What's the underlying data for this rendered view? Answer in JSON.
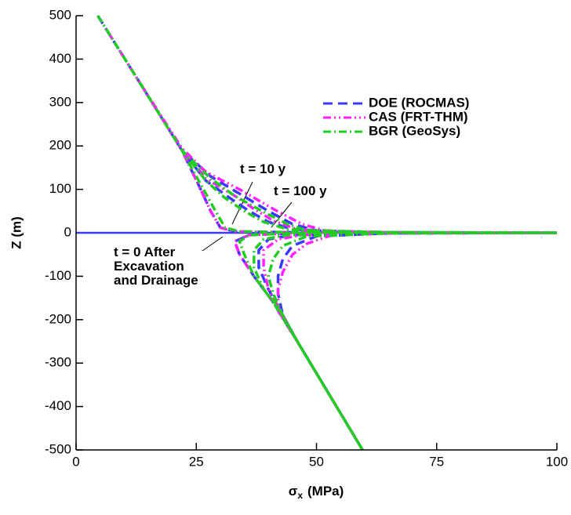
{
  "chart_data": {
    "type": "line",
    "xlabel": {
      "symbol": "σ",
      "subscript": "x",
      "unit": "(MPa)"
    },
    "ylabel": "Z (m)",
    "xlim": [
      0,
      100
    ],
    "xticks": [
      0,
      25,
      50,
      75,
      100
    ],
    "ylim": [
      -500,
      500
    ],
    "yticks": [
      -500,
      -400,
      -300,
      -200,
      -100,
      0,
      100,
      200,
      300,
      400,
      500
    ],
    "hline": {
      "value": 0,
      "color": "#3a3aff"
    },
    "series": [
      {
        "name": "DOE (ROCMAS)",
        "color": "#3a3aff",
        "dash": "12,7",
        "x": [
          4.5,
          13,
          22,
          25.5,
          28,
          30,
          33,
          45,
          70,
          100,
          null,
          100,
          70,
          45,
          36,
          33,
          34,
          37,
          41,
          46,
          59.6,
          null,
          4.5,
          13,
          22,
          27,
          32,
          36,
          40,
          45,
          60,
          100,
          null,
          100,
          60,
          45,
          40,
          38,
          38,
          40,
          42,
          46,
          59.6,
          null,
          4.5,
          13,
          22,
          28,
          34,
          40,
          45,
          50,
          65,
          100,
          null,
          100,
          65,
          50,
          45,
          43,
          42,
          42,
          43,
          46,
          59.6
        ],
        "values": [
          500,
          350,
          190,
          110,
          50,
          12,
          3,
          1,
          0.5,
          0,
          null,
          0,
          -0.5,
          -1,
          -5,
          -20,
          -50,
          -100,
          -160,
          -250,
          -500,
          null,
          500,
          350,
          190,
          120,
          80,
          50,
          25,
          8,
          1,
          0,
          null,
          0,
          -1,
          -5,
          -15,
          -40,
          -80,
          -130,
          -170,
          -250,
          -500,
          null,
          500,
          350,
          190,
          130,
          90,
          50,
          20,
          5,
          1,
          0,
          null,
          0,
          -1,
          -8,
          -30,
          -60,
          -100,
          -140,
          -190,
          -250,
          -500
        ]
      },
      {
        "name": "CAS (FRT-THM)",
        "color": "#ff22ff",
        "dash": "10,4,2,4,2,4",
        "x": [
          4.5,
          13,
          22,
          25.5,
          28,
          30,
          33,
          45,
          70,
          100,
          null,
          100,
          70,
          45,
          36,
          33,
          34,
          37,
          41,
          46,
          59.6,
          null,
          4.5,
          13,
          22,
          27,
          33,
          37,
          41,
          46,
          60,
          100,
          null,
          100,
          60,
          47,
          42,
          39,
          39,
          40,
          42,
          46,
          59.6,
          null,
          4.5,
          13,
          22,
          27,
          34,
          41,
          47,
          52,
          65,
          100,
          null,
          100,
          65,
          53,
          48,
          45,
          43,
          42,
          42,
          46,
          59.6
        ],
        "values": [
          500,
          350,
          190,
          110,
          50,
          12,
          3,
          1,
          0.5,
          0,
          null,
          0,
          -0.5,
          -1,
          -5,
          -20,
          -50,
          -100,
          -160,
          -250,
          -500,
          null,
          500,
          350,
          195,
          125,
          85,
          55,
          28,
          8,
          1,
          0,
          null,
          0,
          -1,
          -5,
          -15,
          -40,
          -80,
          -130,
          -170,
          -250,
          -500,
          null,
          500,
          350,
          195,
          140,
          100,
          55,
          20,
          4,
          1,
          0,
          null,
          0,
          -1,
          -6,
          -25,
          -50,
          -90,
          -130,
          -180,
          -250,
          -500
        ]
      },
      {
        "name": "BGR (GeoSys)",
        "color": "#22cc22",
        "dash": "10,4,2,4",
        "x": [
          4.5,
          13,
          22,
          26,
          29,
          31,
          34,
          45,
          70,
          100,
          null,
          100,
          70,
          45,
          36,
          34,
          35,
          37,
          41,
          46,
          59.6,
          null,
          4.5,
          13,
          22,
          27,
          31,
          35,
          39,
          44,
          60,
          100,
          null,
          100,
          60,
          44,
          39,
          37,
          37,
          39,
          42,
          46,
          59.6,
          null,
          4.5,
          13,
          22,
          28,
          33,
          39,
          44,
          48,
          65,
          100,
          null,
          100,
          65,
          48,
          43,
          41,
          40,
          41,
          43,
          46,
          59.6
        ],
        "values": [
          500,
          350,
          190,
          110,
          50,
          12,
          3,
          1,
          0.5,
          0,
          null,
          0,
          -0.5,
          -1,
          -5,
          -20,
          -50,
          -100,
          -160,
          -250,
          -500,
          null,
          500,
          350,
          190,
          120,
          80,
          50,
          25,
          8,
          1,
          0,
          null,
          0,
          -1,
          -5,
          -15,
          -40,
          -80,
          -130,
          -170,
          -250,
          -500,
          null,
          500,
          350,
          190,
          125,
          85,
          48,
          20,
          5,
          1,
          0,
          null,
          0,
          -1,
          -8,
          -30,
          -60,
          -100,
          -140,
          -190,
          -250,
          -500
        ]
      }
    ],
    "annotations": [
      [
        "t = 10 y"
      ],
      [
        "t = 100 y"
      ],
      [
        "t = 0 After",
        "Excavation",
        "and Drainage"
      ]
    ]
  }
}
